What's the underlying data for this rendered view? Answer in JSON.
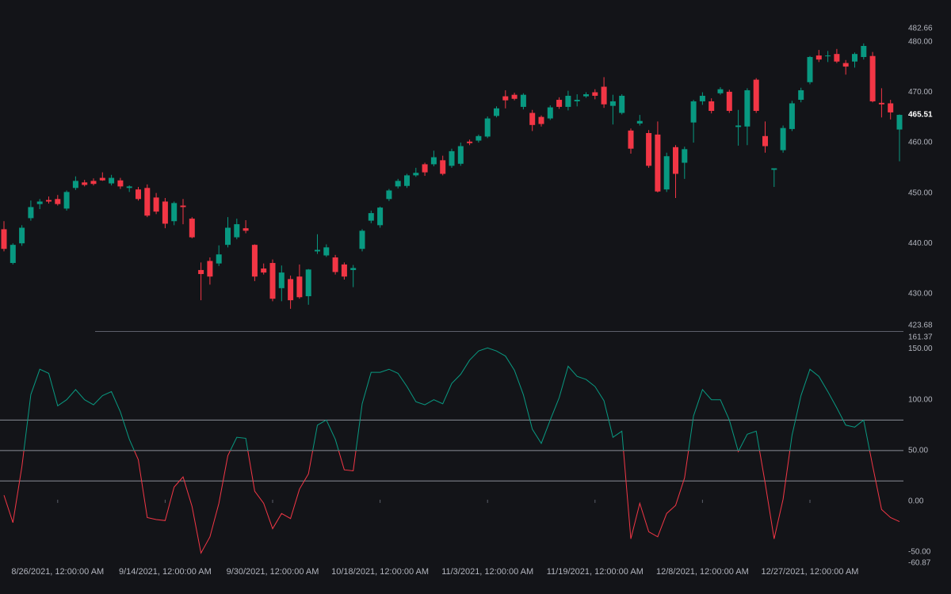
{
  "chart_data": [
    {
      "type": "candlestick",
      "up_color": "#089981",
      "down_color": "#f23645",
      "open": [
        442.8,
        436.1,
        440.0,
        445.0,
        447.8,
        448.6,
        448.8,
        446.9,
        451.0,
        452.1,
        452.4,
        453.0,
        451.9,
        452.5,
        451.0,
        450.7,
        451.0,
        449.1,
        448.3,
        444.4,
        447.5,
        444.9,
        434.7,
        436.5,
        436.0,
        439.7,
        441.2,
        443.0,
        439.7,
        435.0,
        436.1,
        431.1,
        432.9,
        433.4,
        429.5,
        438.4,
        437.6,
        437.2,
        435.8,
        434.7,
        438.9,
        444.5,
        443.6,
        448.8,
        451.3,
        451.4,
        453.5,
        455.7,
        455.7,
        456.5,
        455.4,
        455.8,
        460.2,
        460.4,
        461.2,
        465.3,
        469.2,
        469.5,
        467.1,
        465.9,
        465.1,
        464.8,
        468.5,
        467.1,
        468.2,
        469.2,
        470.0,
        471.1,
        467.3,
        465.9,
        462.4,
        463.8,
        461.9,
        461.6,
        450.7,
        459.1,
        456.0,
        464.0,
        468.2,
        468.2,
        469.8,
        470.1,
        463.1,
        463.2,
        472.5,
        461.3,
        454.6,
        458.5,
        462.7,
        468.5,
        472.0,
        477.3,
        477.2,
        477.6,
        475.8,
        476.1,
        477.0,
        477.2,
        467.9,
        467.8,
        462.6
      ],
      "high": [
        444.4,
        440.0,
        443.6,
        448.5,
        448.8,
        449.3,
        449.6,
        450.5,
        453.3,
        452.6,
        452.9,
        454.1,
        453.6,
        453.0,
        451.5,
        451.2,
        451.7,
        450.0,
        449.0,
        448.3,
        448.8,
        445.2,
        436.2,
        437.2,
        439.6,
        445.2,
        444.9,
        444.6,
        439.8,
        436.0,
        436.8,
        435.6,
        433.6,
        435.8,
        434.9,
        441.8,
        439.8,
        437.7,
        436.2,
        435.7,
        442.8,
        446.5,
        447.3,
        450.8,
        452.8,
        453.8,
        455.0,
        456.0,
        458.4,
        457.4,
        458.8,
        460.0,
        460.6,
        461.6,
        465.2,
        467.2,
        470.4,
        469.9,
        469.8,
        466.5,
        465.4,
        467.4,
        469.0,
        470.3,
        469.6,
        470.0,
        470.6,
        473.0,
        469.5,
        469.6,
        462.8,
        465.5,
        462.5,
        464.2,
        458.0,
        459.5,
        459.2,
        468.5,
        470.0,
        468.8,
        471.0,
        470.5,
        466.5,
        470.8,
        472.8,
        464.2,
        454.9,
        463.4,
        468.3,
        470.9,
        477.2,
        478.4,
        478.2,
        478.6,
        476.4,
        477.9,
        479.7,
        478.0,
        470.8,
        468.5,
        465.6
      ],
      "low": [
        438.4,
        435.8,
        439.5,
        444.5,
        446.8,
        447.9,
        447.5,
        446.5,
        450.6,
        451.3,
        451.5,
        452.4,
        451.5,
        450.8,
        450.2,
        448.5,
        445.2,
        445.8,
        443.0,
        443.6,
        443.8,
        441.0,
        428.7,
        431.8,
        435.5,
        439.2,
        440.8,
        442.0,
        432.5,
        433.8,
        428.5,
        428.5,
        427.0,
        429.0,
        427.8,
        437.9,
        437.3,
        433.8,
        432.8,
        431.3,
        438.4,
        444.0,
        443.1,
        448.4,
        450.9,
        451.0,
        453.2,
        453.4,
        455.3,
        453.5,
        455.0,
        455.4,
        459.5,
        460.0,
        460.9,
        465.0,
        466.8,
        468.4,
        466.6,
        462.3,
        463.2,
        464.5,
        466.7,
        466.4,
        467.2,
        468.9,
        468.6,
        466.9,
        463.6,
        465.6,
        457.8,
        463.4,
        455.0,
        450.1,
        450.2,
        449.0,
        452.8,
        460.0,
        467.5,
        465.8,
        469.5,
        465.9,
        459.4,
        459.5,
        465.9,
        458.0,
        451.2,
        458.0,
        462.3,
        468.0,
        471.6,
        476.0,
        476.0,
        475.8,
        473.5,
        474.9,
        476.5,
        468.0,
        465.0,
        464.6,
        456.3
      ],
      "close": [
        438.9,
        439.7,
        443.1,
        447.2,
        448.3,
        448.3,
        447.8,
        450.2,
        452.4,
        451.6,
        451.8,
        452.5,
        453.0,
        451.3,
        451.3,
        448.8,
        445.5,
        446.3,
        443.9,
        448.0,
        447.2,
        441.2,
        433.9,
        433.4,
        437.8,
        443.1,
        443.8,
        442.5,
        433.4,
        434.2,
        429.0,
        434.2,
        428.7,
        429.3,
        434.8,
        438.7,
        439.2,
        434.3,
        433.4,
        435.1,
        442.5,
        446.0,
        447.1,
        450.5,
        452.4,
        453.5,
        454.0,
        454.1,
        457.1,
        453.8,
        458.3,
        459.3,
        459.9,
        461.3,
        464.8,
        466.8,
        468.4,
        468.7,
        469.5,
        463.5,
        463.7,
        467.0,
        467.1,
        469.3,
        468.5,
        469.6,
        469.3,
        467.6,
        468.2,
        469.3,
        458.8,
        464.3,
        455.4,
        450.3,
        457.3,
        453.8,
        458.7,
        468.2,
        469.3,
        466.3,
        470.6,
        466.3,
        463.4,
        470.4,
        466.3,
        459.3,
        454.9,
        462.9,
        467.8,
        470.4,
        477.0,
        476.5,
        477.3,
        476.1,
        475.1,
        477.6,
        479.2,
        468.2,
        467.6,
        466.0,
        465.51
      ],
      "ylim": [
        423.68,
        482.66
      ],
      "yticks": [
        423.68,
        {
          "value": 430,
          "label": "430.00"
        },
        {
          "value": 440,
          "label": "440.00"
        },
        {
          "value": 450,
          "label": "450.00"
        },
        {
          "value": 460,
          "label": "460.00"
        },
        {
          "value": 470,
          "label": "470.00"
        },
        {
          "value": 480,
          "label": "480.00"
        },
        482.66
      ]
    },
    {
      "type": "line",
      "up_color": "#089981",
      "down_color": "#f23645",
      "categories": [
        null,
        null,
        null,
        null,
        null,
        null,
        "8/26/2021, 12:00:00 AM",
        null,
        null,
        null,
        null,
        null,
        null,
        null,
        null,
        null,
        null,
        null,
        "9/14/2021, 12:00:00 AM",
        null,
        null,
        null,
        null,
        null,
        null,
        null,
        null,
        null,
        null,
        null,
        "9/30/2021, 12:00:00 AM",
        null,
        null,
        null,
        null,
        null,
        null,
        null,
        null,
        null,
        null,
        null,
        "10/18/2021, 12:00:00 AM",
        null,
        null,
        null,
        null,
        null,
        null,
        null,
        null,
        null,
        null,
        null,
        "11/3/2021, 12:00:00 AM",
        null,
        null,
        null,
        null,
        null,
        null,
        null,
        null,
        null,
        null,
        null,
        "11/19/2021, 12:00:00 AM",
        null,
        null,
        null,
        null,
        null,
        null,
        null,
        null,
        null,
        null,
        null,
        "12/8/2021, 12:00:00 AM",
        null,
        null,
        null,
        null,
        null,
        null,
        null,
        null,
        null,
        null,
        null,
        "12/27/2021, 12:00:00 AM",
        null,
        null,
        null,
        null,
        null,
        null,
        null,
        null,
        null,
        null
      ],
      "values": [
        6,
        -21,
        34,
        105,
        130,
        126,
        94,
        100,
        110,
        100,
        95,
        104,
        108,
        88,
        61,
        41,
        -16,
        -18,
        -19,
        14,
        24,
        -5,
        -51,
        -35,
        -2,
        45,
        63,
        62,
        10,
        -2,
        -27,
        -12,
        -17,
        12,
        27,
        75,
        80,
        61,
        31,
        30,
        96,
        127,
        127,
        130,
        126,
        113,
        98,
        95,
        100,
        96,
        116,
        125,
        139,
        148,
        151,
        148,
        143,
        129,
        105,
        71,
        57,
        80,
        102,
        133,
        123,
        120,
        113,
        99,
        63,
        69,
        -37,
        -2,
        -30,
        -35,
        -12,
        -4,
        23,
        84,
        110,
        100,
        100,
        80,
        49,
        66,
        69,
        18,
        -37,
        2,
        65,
        104,
        130,
        123,
        108,
        92,
        75,
        73,
        80,
        35,
        -8,
        -16,
        -20
      ],
      "levels": [
        80,
        50,
        20
      ],
      "ylim": [
        -60.87,
        161.37
      ],
      "yticks": [
        161.37,
        {
          "value": 150,
          "label": "150.00"
        },
        {
          "value": 100,
          "label": "100.00"
        },
        {
          "value": 50,
          "label": "50.00"
        },
        {
          "value": 0,
          "label": "0.00"
        },
        {
          "value": -50,
          "label": "-50.00"
        },
        -60.87
      ]
    }
  ]
}
